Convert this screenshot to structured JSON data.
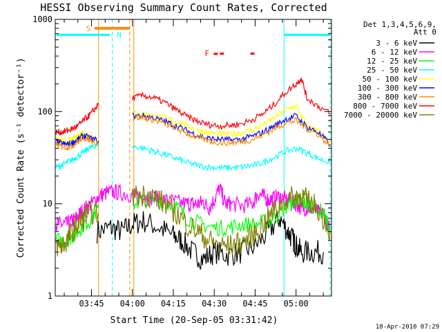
{
  "chart_data": {
    "type": "line",
    "title": "HESSI Observing Summary Count Rates, Corrected",
    "xlabel": "Start Time (20-Sep-05 03:31:42)",
    "ylabel": "Corrected Count Rate (s⁻¹ detector⁻¹)",
    "y_scale": "log",
    "ylim": [
      1,
      1000
    ],
    "xlim_minutes": [
      211.7,
      313.0
    ],
    "y_ticks": [
      {
        "value": 1,
        "label": "1"
      },
      {
        "value": 10,
        "label": "10"
      },
      {
        "value": 100,
        "label": "100"
      },
      {
        "value": 1000,
        "label": "1000"
      }
    ],
    "x_ticks": [
      {
        "minutes": 225,
        "label": "03:45"
      },
      {
        "minutes": 240,
        "label": "04:00"
      },
      {
        "minutes": 255,
        "label": "04:15"
      },
      {
        "minutes": 270,
        "label": "04:30"
      },
      {
        "minutes": 285,
        "label": "04:45"
      },
      {
        "minutes": 300,
        "label": "05:00"
      }
    ],
    "legend_header": [
      "Det 1,3,4,5,6,9,",
      "Att 0"
    ],
    "legend_position": "right",
    "series": [
      {
        "name": "3 - 6 keV",
        "color": "#000000",
        "segments": [
          {
            "t": [
              227,
              232,
              236,
              240,
              244,
              250,
              255,
              258,
              262,
              266,
              270,
              275,
              280,
              285,
              290,
              294,
              297,
              299,
              300,
              302,
              306,
              310
            ],
            "v": [
              5,
              5.5,
              5,
              6,
              6.5,
              5.5,
              4.5,
              4,
              3,
              2.5,
              3,
              2.8,
              3,
              3.5,
              5,
              7,
              5,
              4,
              3.5,
              3,
              3,
              3
            ]
          }
        ]
      },
      {
        "name": "6 - 12 keV",
        "color": "#ff00ff",
        "segments": [
          {
            "t": [
              212,
              214,
              216,
              218,
              219.5,
              221,
              223,
              225,
              227.6,
              230,
              233,
              236,
              240,
              242,
              244,
              248,
              252,
              256,
              260,
              262,
              264,
              266,
              268,
              270,
              272,
              274,
              276,
              280,
              284,
              286,
              288,
              290,
              292,
              294,
              296,
              298,
              300,
              302,
              304,
              306,
              308,
              310,
              312.5
            ],
            "v": [
              6,
              6,
              6,
              6.5,
              7,
              8,
              9,
              10,
              12,
              13,
              13.5,
              13,
              12.5,
              12,
              12,
              11.5,
              11,
              10.5,
              10,
              10,
              10,
              10.5,
              9,
              11,
              15,
              10,
              10,
              9.5,
              10,
              13,
              12,
              11,
              11.5,
              12,
              11,
              10.5,
              10,
              9,
              9,
              9,
              8,
              8,
              5
            ]
          }
        ]
      },
      {
        "name": "12 - 25 keV",
        "color": "#00ff00",
        "segments": [
          {
            "t": [
              212,
              216,
              218,
              220,
              222,
              224,
              227.6
            ],
            "v": [
              4,
              4,
              4.5,
              5,
              6,
              6.5,
              9
            ]
          },
          {
            "t": [
              240,
              244,
              250,
              256,
              260,
              265,
              270,
              275,
              280,
              285,
              290,
              294,
              298,
              300,
              302,
              304,
              306,
              310,
              312.5
            ],
            "v": [
              10,
              11,
              10.5,
              9.5,
              7,
              6,
              5.5,
              5.5,
              6,
              6,
              6.5,
              8,
              10,
              11,
              10.5,
              10,
              9.5,
              8,
              5
            ]
          }
        ]
      },
      {
        "name": "25 - 50 keV",
        "color": "#00ffff",
        "segments": [
          {
            "t": [
              212,
              214,
              216,
              218,
              220,
              222,
              224,
              226,
              227.6
            ],
            "v": [
              25,
              26,
              28,
              30,
              33,
              36,
              40,
              42,
              45
            ]
          },
          {
            "t": [
              240,
              244,
              248,
              252,
              256,
              260,
              264,
              268,
              272,
              276,
              280,
              284,
              288,
              292,
              296,
              300,
              304,
              308,
              312.5
            ],
            "v": [
              42,
              40,
              37,
              34,
              31,
              28,
              26,
              25,
              24.5,
              24.5,
              25,
              26,
              28,
              32,
              37,
              40,
              36,
              31,
              28
            ]
          }
        ]
      },
      {
        "name": "50 - 100 keV",
        "color": "#ffff00",
        "segments": [
          {
            "t": [
              212,
              214,
              216,
              218,
              220,
              222,
              224,
              227.6
            ],
            "v": [
              50,
              48,
              47,
              50,
              55,
              60,
              55,
              50
            ]
          },
          {
            "t": [
              240,
              244,
              248,
              252,
              256,
              260,
              264,
              268,
              272,
              276,
              280,
              284,
              288,
              292,
              296,
              300,
              304,
              308,
              312.5
            ],
            "v": [
              95,
              95,
              90,
              85,
              78,
              70,
              63,
              59,
              57,
              57,
              59,
              63,
              72,
              85,
              105,
              115,
              70,
              62,
              45
            ]
          }
        ]
      },
      {
        "name": "100 - 300 keV",
        "color": "#0000ff",
        "segments": [
          {
            "t": [
              212,
              214,
              216,
              218,
              220,
              222,
              224,
              227.6
            ],
            "v": [
              47,
              45,
              44,
              46,
              50,
              55,
              52,
              48
            ]
          },
          {
            "t": [
              240,
              244,
              248,
              252,
              256,
              260,
              264,
              268,
              272,
              276,
              280,
              284,
              288,
              292,
              296,
              300,
              304,
              308,
              312.5
            ],
            "v": [
              90,
              90,
              85,
              78,
              70,
              62,
              55,
              51,
              50,
              49,
              50,
              54,
              60,
              70,
              82,
              90,
              68,
              60,
              44
            ]
          }
        ]
      },
      {
        "name": "300 - 800 keV",
        "color": "#ff8c00",
        "segments": [
          {
            "t": [
              212,
              214,
              216,
              218,
              220,
              222,
              224,
              227.6
            ],
            "v": [
              44,
              42,
              41,
              43,
              47,
              52,
              50,
              45
            ]
          },
          {
            "t": [
              240,
              244,
              248,
              252,
              256,
              260,
              264,
              268,
              272,
              276,
              280,
              284,
              288,
              292,
              296,
              300,
              304,
              308,
              312.5
            ],
            "v": [
              86,
              86,
              81,
              74,
              66,
              58,
              52,
              48,
              46,
              46,
              47,
              50,
              56,
              65,
              75,
              80,
              65,
              57,
              42
            ]
          }
        ]
      },
      {
        "name": "800 - 7000 keV",
        "color": "#ff0000",
        "segments": [
          {
            "t": [
              212,
              214,
              216,
              218,
              220,
              222,
              224,
              226,
              227.6
            ],
            "v": [
              60,
              60,
              62,
              65,
              70,
              80,
              90,
              105,
              120
            ]
          },
          {
            "t": [
              240,
              244,
              248,
              252,
              256,
              260,
              264,
              268,
              272,
              276,
              280,
              284,
              288,
              292,
              296,
              300,
              302,
              304,
              308,
              312.5
            ],
            "v": [
              140,
              150,
              140,
              125,
              105,
              88,
              78,
              72,
              70,
              71,
              74,
              82,
              95,
              120,
              160,
              200,
              230,
              140,
              115,
              95
            ]
          }
        ]
      },
      {
        "name": "7000 - 20000 keV",
        "color": "#808000",
        "segments": [
          {
            "t": [
              212,
              214,
              216,
              218,
              220,
              222,
              224,
              227.6
            ],
            "v": [
              3.5,
              3.5,
              4,
              5,
              6,
              7,
              8,
              8
            ]
          },
          {
            "t": [
              240,
              244,
              248,
              252,
              256,
              260,
              264,
              268,
              272,
              276,
              280,
              284,
              288,
              292,
              296,
              300,
              302,
              304,
              308,
              312.5
            ],
            "v": [
              12,
              12.5,
              12,
              10,
              8,
              6,
              5,
              4,
              3.5,
              3.5,
              3.8,
              4.5,
              6,
              8.5,
              11,
              12,
              12,
              11,
              9,
              5
            ]
          }
        ]
      }
    ],
    "annotations": [
      {
        "label": "S",
        "color": "#ff8c00",
        "t": 226.1,
        "t_end": 239.0,
        "v": 800
      },
      {
        "label": "N",
        "color": "#00ffff",
        "t": 234.3,
        "v": 680
      },
      {
        "label": "F",
        "color": "#ff0000",
        "t": 266.5,
        "v": 430
      },
      {
        "label": "",
        "color": "#ff0000",
        "t": 272.8,
        "v": 425
      },
      {
        "label": "",
        "color": "#ff0000",
        "t": 284.0,
        "v": 425
      }
    ],
    "cyan_bars": [
      [
        212.2,
        231.7
      ],
      [
        295.6,
        312.5
      ]
    ],
    "vlines": [
      {
        "t": 227.6,
        "color": "#ff8c00",
        "style": "solid"
      },
      {
        "t": 232.6,
        "color": "#00ffff",
        "style": "dashed"
      },
      {
        "t": 239.0,
        "color": "#ff8c00",
        "style": "dashed"
      },
      {
        "t": 240.5,
        "color": "#ff8c00",
        "style": "solid"
      },
      {
        "t": 295.6,
        "color": "#00ffff",
        "style": "solid"
      },
      {
        "t": 312.5,
        "color": "#00ffff",
        "style": "dashed"
      }
    ],
    "timestamp": "18-Apr-2010 07:29"
  }
}
